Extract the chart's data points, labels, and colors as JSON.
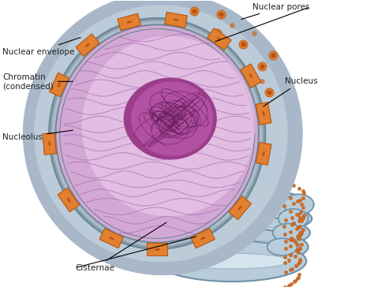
{
  "background_color": "#ffffff",
  "labels": {
    "nuclear_envelope": "Nuclear envelope",
    "chromatin": "Chromatin\n(condensed)",
    "nucleolus": "Nucleolus",
    "nuclear_pores": "Nuclear pores",
    "nucleus": "Nucleus",
    "cisternae": "Cisternae"
  },
  "colors": {
    "nuclear_envelope_gray": "#8a9eaa",
    "nuclear_envelope_gray2": "#aabbc8",
    "nuclear_interior": "#d4a8d4",
    "nuclear_interior_light": "#e8c8e8",
    "nuclear_interior_grad": "#c890c8",
    "nucleolus_dark": "#9b3d8a",
    "nucleolus_mid": "#b855a8",
    "nucleolus_light": "#d070c0",
    "chromatin_line": "#9858a8",
    "pore_orange": "#e08030",
    "pore_dark": "#b85010",
    "pore_mid": "#d06020",
    "outer_region_gray": "#a8b8c8",
    "outer_region_light": "#bccbd8",
    "er_blue_dark": "#7090a8",
    "er_blue_mid": "#90aabf",
    "er_blue_light": "#b8ccda",
    "er_lumen": "#d8e8f0",
    "ribosome": "#d07028",
    "ribosome_dark": "#a85010",
    "text_color": "#222222",
    "envelope_line_color": "#6a8898"
  },
  "figsize": [
    4.74,
    3.64
  ],
  "dpi": 100
}
